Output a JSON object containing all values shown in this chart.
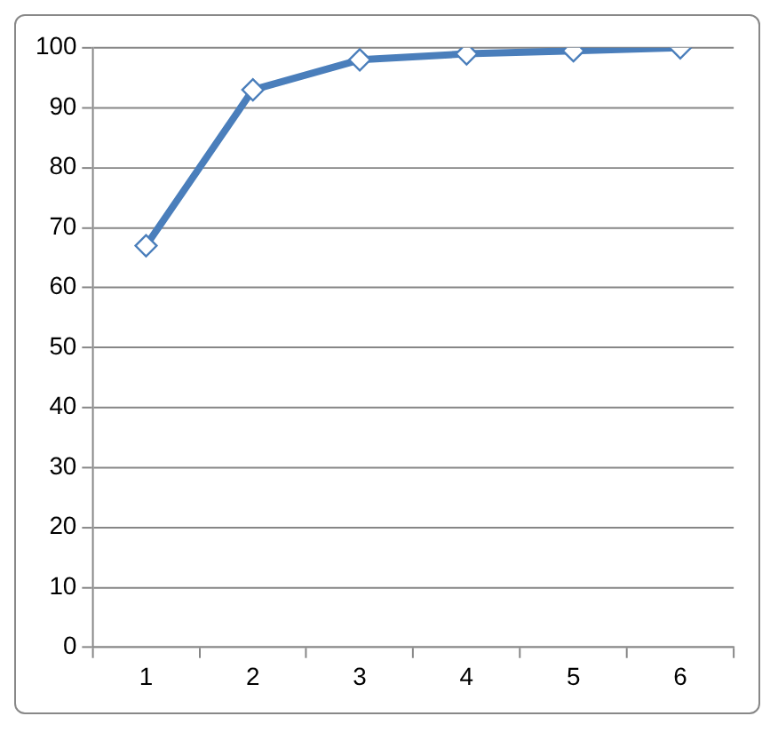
{
  "chart_data": {
    "type": "line",
    "categories": [
      "1",
      "2",
      "3",
      "4",
      "5",
      "6"
    ],
    "series": [
      {
        "color": "#4a7ebb",
        "values": [
          67,
          93,
          98,
          99,
          99.5,
          100
        ]
      }
    ],
    "ylim": [
      0,
      100
    ],
    "yticks": [
      0,
      10,
      20,
      30,
      40,
      50,
      60,
      70,
      80,
      90,
      100
    ],
    "grid": "y",
    "legend": false,
    "marker": "diamond",
    "line_style": "solid"
  }
}
